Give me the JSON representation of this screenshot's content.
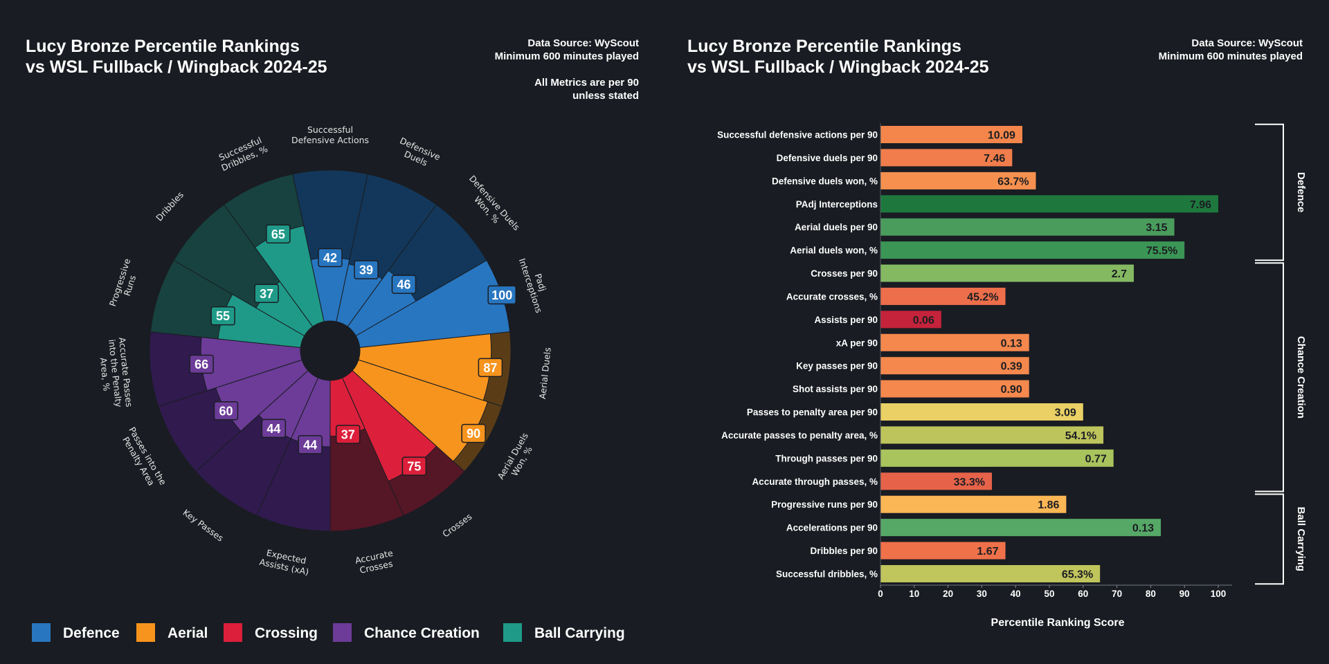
{
  "left_panel": {
    "title_lines": [
      "Lucy Bronze Percentile Rankings",
      "vs WSL Fullback / Wingback 2024-25"
    ],
    "notes": [
      "Data Source: WyScout",
      "Minimum 600 minutes played",
      "All Metrics are per 90",
      "unless stated"
    ]
  },
  "right_panel": {
    "title_lines": [
      "Lucy Bronze Percentile Rankings",
      "vs WSL Fullback / Wingback 2024-25"
    ],
    "notes": [
      "Data Source: WyScout",
      "Minimum 600 minutes played"
    ]
  },
  "legend": [
    {
      "label": "Defence",
      "color": "#2876c0"
    },
    {
      "label": "Aerial",
      "color": "#f7941d"
    },
    {
      "label": "Crossing",
      "color": "#dc1f3a"
    },
    {
      "label": "Chance Creation",
      "color": "#6c3c98"
    },
    {
      "label": "Ball Carrying",
      "color": "#1f9a88"
    }
  ],
  "chart_data": [
    {
      "type": "bar",
      "polar": true,
      "range": [
        0,
        100
      ],
      "categories_colors": {
        "Defence": {
          "fill": "#2876c0",
          "background": "#12375a"
        },
        "Aerial": {
          "fill": "#f7941d",
          "background": "#5a3d17"
        },
        "Crossing": {
          "fill": "#dc1f3a",
          "background": "#551626"
        },
        "Chance Creation": {
          "fill": "#6c3c98",
          "background": "#301a4e"
        },
        "Ball Carrying": {
          "fill": "#1f9a88",
          "background": "#17423f"
        }
      },
      "metrics": [
        {
          "label_lines": [
            "Successful",
            "Defensive Actions"
          ],
          "value": 42,
          "group": "Defence"
        },
        {
          "label_lines": [
            "Defensive",
            "Duels"
          ],
          "value": 39,
          "group": "Defence"
        },
        {
          "label_lines": [
            "Defensive Duels",
            "Won, %"
          ],
          "value": 46,
          "group": "Defence"
        },
        {
          "label_lines": [
            "Padj",
            "Interceptions"
          ],
          "value": 100,
          "group": "Defence"
        },
        {
          "label_lines": [
            "Aerial Duels"
          ],
          "value": 87,
          "group": "Aerial"
        },
        {
          "label_lines": [
            "Aerial Duels",
            "Won, %"
          ],
          "value": 90,
          "group": "Aerial"
        },
        {
          "label_lines": [
            "Crosses"
          ],
          "value": 75,
          "group": "Crossing"
        },
        {
          "label_lines": [
            "Accurate",
            "Crosses"
          ],
          "value": 37,
          "group": "Crossing"
        },
        {
          "label_lines": [
            "Expected",
            "Assists (xA)"
          ],
          "value": 44,
          "group": "Chance Creation"
        },
        {
          "label_lines": [
            "Key Passes"
          ],
          "value": 44,
          "group": "Chance Creation"
        },
        {
          "label_lines": [
            "Passes into the",
            "Penalty Area"
          ],
          "value": 60,
          "group": "Chance Creation"
        },
        {
          "label_lines": [
            "Accurate Passes",
            "into the Penalty",
            "Area, %"
          ],
          "value": 66,
          "group": "Chance Creation"
        },
        {
          "label_lines": [
            "Progressive",
            "Runs"
          ],
          "value": 55,
          "group": "Ball Carrying"
        },
        {
          "label_lines": [
            "Dribbles"
          ],
          "value": 37,
          "group": "Ball Carrying"
        },
        {
          "label_lines": [
            "Successful",
            "Dribbles, %"
          ],
          "value": 65,
          "group": "Ball Carrying"
        }
      ]
    },
    {
      "type": "bar",
      "orientation": "horizontal",
      "xlabel": "Percentile Ranking Score",
      "xlim": [
        0,
        100
      ],
      "xticks": [
        "0",
        "10",
        "20",
        "30",
        "40",
        "50",
        "60",
        "70",
        "80",
        "90",
        "100"
      ],
      "rows": [
        {
          "label": "Successful defensive actions per 90",
          "percentile": 42,
          "value_label": "10.09",
          "color": "#f4864b"
        },
        {
          "label": "Defensive duels per 90",
          "percentile": 39,
          "value_label": "7.46",
          "color": "#f07d4b"
        },
        {
          "label": "Defensive duels won, %",
          "percentile": 46,
          "value_label": "63.7%",
          "color": "#f7904f"
        },
        {
          "label": "PAdj Interceptions",
          "percentile": 100,
          "value_label": "7.96",
          "color": "#1e783e"
        },
        {
          "label": "Aerial duels per 90",
          "percentile": 87,
          "value_label": "3.15",
          "color": "#4a9c5d"
        },
        {
          "label": "Aerial duels won, %",
          "percentile": 90,
          "value_label": "75.5%",
          "color": "#3b9656"
        },
        {
          "label": "Crosses per 90",
          "percentile": 75,
          "value_label": "2.7",
          "color": "#84b962"
        },
        {
          "label": "Accurate crosses, %",
          "percentile": 37,
          "value_label": "45.2%",
          "color": "#ec6e4a"
        },
        {
          "label": "Assists per 90",
          "percentile": 18,
          "value_label": "0.06",
          "color": "#c4233b"
        },
        {
          "label": "xA per 90",
          "percentile": 44,
          "value_label": "0.13",
          "color": "#f5884d"
        },
        {
          "label": "Key passes per 90",
          "percentile": 44,
          "value_label": "0.39",
          "color": "#f5884d"
        },
        {
          "label": "Shot assists per 90",
          "percentile": 44,
          "value_label": "0.90",
          "color": "#f5884d"
        },
        {
          "label": "Passes to penalty area per 90",
          "percentile": 60,
          "value_label": "3.09",
          "color": "#ead065"
        },
        {
          "label": "Accurate passes to penalty area, %",
          "percentile": 66,
          "value_label": "54.1%",
          "color": "#bec45c"
        },
        {
          "label": "Through passes per 90",
          "percentile": 69,
          "value_label": "0.77",
          "color": "#a9c35d"
        },
        {
          "label": "Accurate through passes, %",
          "percentile": 33,
          "value_label": "33.3%",
          "color": "#e6634a"
        },
        {
          "label": "Progressive runs per 90",
          "percentile": 55,
          "value_label": "1.86",
          "color": "#fbb655"
        },
        {
          "label": "Accelerations per 90",
          "percentile": 83,
          "value_label": "0.13",
          "color": "#56a866"
        },
        {
          "label": "Dribbles per 90",
          "percentile": 37,
          "value_label": "1.67",
          "color": "#ee714a"
        },
        {
          "label": "Successful dribbles, %",
          "percentile": 65,
          "value_label": "65.3%",
          "color": "#c0c55c"
        }
      ],
      "groups": [
        {
          "label": "Defence",
          "first_row": 0,
          "last_row": 5
        },
        {
          "label": "Chance Creation",
          "first_row": 6,
          "last_row": 15
        },
        {
          "label": "Ball Carrying",
          "first_row": 16,
          "last_row": 19
        }
      ]
    }
  ]
}
